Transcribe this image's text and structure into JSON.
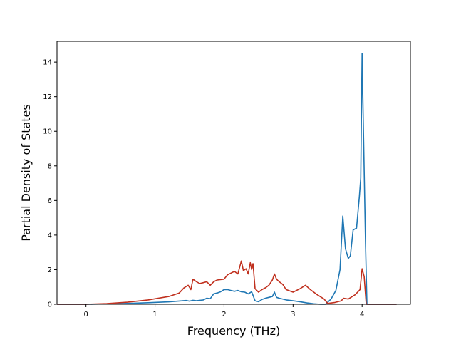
{
  "chart_data": {
    "type": "line",
    "title": "",
    "xlabel": "Frequency (THz)",
    "ylabel": "Partial Density of States",
    "xlim": [
      -0.42,
      4.7
    ],
    "ylim": [
      0,
      15.2
    ],
    "xticks": [
      0,
      1,
      2,
      3,
      4
    ],
    "yticks": [
      0,
      2,
      4,
      6,
      8,
      10,
      12,
      14
    ],
    "grid": false,
    "legend": "none",
    "series": [
      {
        "color": "#1f77b4",
        "points": [
          [
            -0.42,
            0.0
          ],
          [
            0.0,
            0.0
          ],
          [
            0.3,
            0.02
          ],
          [
            0.6,
            0.05
          ],
          [
            0.9,
            0.09
          ],
          [
            1.2,
            0.14
          ],
          [
            1.4,
            0.2
          ],
          [
            1.45,
            0.22
          ],
          [
            1.5,
            0.18
          ],
          [
            1.55,
            0.23
          ],
          [
            1.6,
            0.2
          ],
          [
            1.7,
            0.25
          ],
          [
            1.75,
            0.35
          ],
          [
            1.8,
            0.32
          ],
          [
            1.85,
            0.6
          ],
          [
            1.9,
            0.65
          ],
          [
            1.95,
            0.72
          ],
          [
            2.0,
            0.85
          ],
          [
            2.05,
            0.85
          ],
          [
            2.1,
            0.8
          ],
          [
            2.15,
            0.75
          ],
          [
            2.2,
            0.8
          ],
          [
            2.25,
            0.72
          ],
          [
            2.3,
            0.7
          ],
          [
            2.35,
            0.6
          ],
          [
            2.4,
            0.72
          ],
          [
            2.45,
            0.2
          ],
          [
            2.5,
            0.15
          ],
          [
            2.55,
            0.28
          ],
          [
            2.6,
            0.35
          ],
          [
            2.65,
            0.4
          ],
          [
            2.7,
            0.45
          ],
          [
            2.73,
            0.7
          ],
          [
            2.76,
            0.4
          ],
          [
            2.8,
            0.35
          ],
          [
            2.9,
            0.25
          ],
          [
            3.0,
            0.2
          ],
          [
            3.1,
            0.15
          ],
          [
            3.2,
            0.08
          ],
          [
            3.3,
            0.03
          ],
          [
            3.4,
            0.0
          ],
          [
            3.47,
            0.0
          ],
          [
            3.55,
            0.3
          ],
          [
            3.62,
            0.8
          ],
          [
            3.68,
            2.0
          ],
          [
            3.72,
            5.1
          ],
          [
            3.76,
            3.2
          ],
          [
            3.8,
            2.65
          ],
          [
            3.83,
            2.8
          ],
          [
            3.87,
            4.3
          ],
          [
            3.92,
            4.4
          ],
          [
            3.96,
            6.2
          ],
          [
            3.98,
            7.3
          ],
          [
            4.0,
            14.5
          ],
          [
            4.02,
            10.0
          ],
          [
            4.05,
            3.5
          ],
          [
            4.07,
            0.0
          ],
          [
            4.5,
            0.0
          ]
        ]
      },
      {
        "color": "#c0301e",
        "points": [
          [
            -0.42,
            0.0
          ],
          [
            0.0,
            0.0
          ],
          [
            0.3,
            0.04
          ],
          [
            0.6,
            0.12
          ],
          [
            0.9,
            0.25
          ],
          [
            1.2,
            0.45
          ],
          [
            1.35,
            0.65
          ],
          [
            1.42,
            0.95
          ],
          [
            1.48,
            1.1
          ],
          [
            1.52,
            0.85
          ],
          [
            1.55,
            1.45
          ],
          [
            1.6,
            1.3
          ],
          [
            1.65,
            1.2
          ],
          [
            1.7,
            1.25
          ],
          [
            1.75,
            1.3
          ],
          [
            1.8,
            1.1
          ],
          [
            1.85,
            1.3
          ],
          [
            1.9,
            1.4
          ],
          [
            2.0,
            1.45
          ],
          [
            2.05,
            1.7
          ],
          [
            2.1,
            1.8
          ],
          [
            2.15,
            1.9
          ],
          [
            2.2,
            1.75
          ],
          [
            2.25,
            2.5
          ],
          [
            2.28,
            1.95
          ],
          [
            2.32,
            2.05
          ],
          [
            2.35,
            1.75
          ],
          [
            2.38,
            2.4
          ],
          [
            2.4,
            2.0
          ],
          [
            2.42,
            2.35
          ],
          [
            2.45,
            0.9
          ],
          [
            2.5,
            0.7
          ],
          [
            2.55,
            0.85
          ],
          [
            2.6,
            0.95
          ],
          [
            2.65,
            1.1
          ],
          [
            2.7,
            1.4
          ],
          [
            2.73,
            1.75
          ],
          [
            2.76,
            1.45
          ],
          [
            2.8,
            1.3
          ],
          [
            2.85,
            1.15
          ],
          [
            2.9,
            0.85
          ],
          [
            3.0,
            0.7
          ],
          [
            3.1,
            0.9
          ],
          [
            3.18,
            1.1
          ],
          [
            3.25,
            0.85
          ],
          [
            3.35,
            0.55
          ],
          [
            3.45,
            0.3
          ],
          [
            3.5,
            0.05
          ],
          [
            3.6,
            0.1
          ],
          [
            3.7,
            0.2
          ],
          [
            3.73,
            0.35
          ],
          [
            3.8,
            0.3
          ],
          [
            3.9,
            0.55
          ],
          [
            3.97,
            0.85
          ],
          [
            4.0,
            2.05
          ],
          [
            4.03,
            1.6
          ],
          [
            4.06,
            0.0
          ],
          [
            4.5,
            0.0
          ]
        ]
      }
    ]
  }
}
